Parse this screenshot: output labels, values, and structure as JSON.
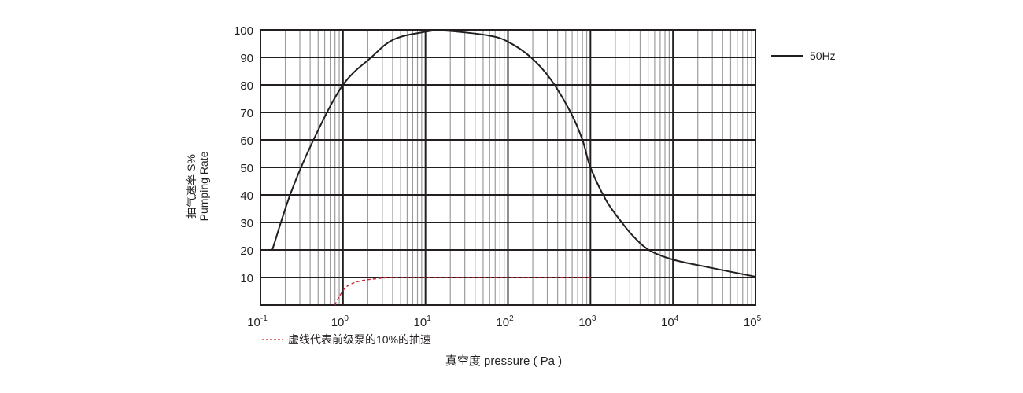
{
  "chart_data": {
    "type": "line",
    "title": "",
    "xlabel": "真空度 pressure ( Pa )",
    "ylabel_lines": [
      "抽气速率 S%",
      "Pumping Rate"
    ],
    "x_scale": "log",
    "xlim": [
      0.1,
      100000
    ],
    "ylim": [
      0,
      100
    ],
    "x_ticks": [
      {
        "base": "10",
        "exp": "-1"
      },
      {
        "base": "10",
        "exp": "0"
      },
      {
        "base": "10",
        "exp": "1"
      },
      {
        "base": "10",
        "exp": "2"
      },
      {
        "base": "10",
        "exp": "3"
      },
      {
        "base": "10",
        "exp": "4"
      },
      {
        "base": "10",
        "exp": "5"
      }
    ],
    "y_ticks": [
      "10",
      "20",
      "30",
      "40",
      "50",
      "60",
      "70",
      "80",
      "90",
      "100"
    ],
    "grid": true,
    "legend_position": "right",
    "series": [
      {
        "name": "50Hz",
        "color": "#231f20",
        "style": "solid",
        "x": [
          0.139,
          0.235,
          0.455,
          1,
          2.2,
          4.1,
          10,
          17,
          57,
          100,
          190,
          330,
          575,
          800,
          1000,
          1550,
          2400,
          3300,
          5100,
          10000,
          27000,
          100000
        ],
        "y": [
          20,
          41,
          61,
          80,
          90,
          96.5,
          99.3,
          99.7,
          98,
          95.7,
          90,
          82,
          70,
          60,
          50,
          38,
          30,
          25,
          20,
          16.5,
          13.7,
          10.3
        ]
      },
      {
        "name": "虚线代表前级泵的10%的抽速",
        "color": "#c8202f",
        "style": "dashed",
        "x": [
          0.8,
          0.9,
          1.09,
          1.5,
          2.4,
          4.1,
          10,
          100,
          1000
        ],
        "y": [
          0,
          3,
          6.5,
          8.5,
          9.5,
          10,
          10,
          10,
          10
        ]
      }
    ]
  }
}
